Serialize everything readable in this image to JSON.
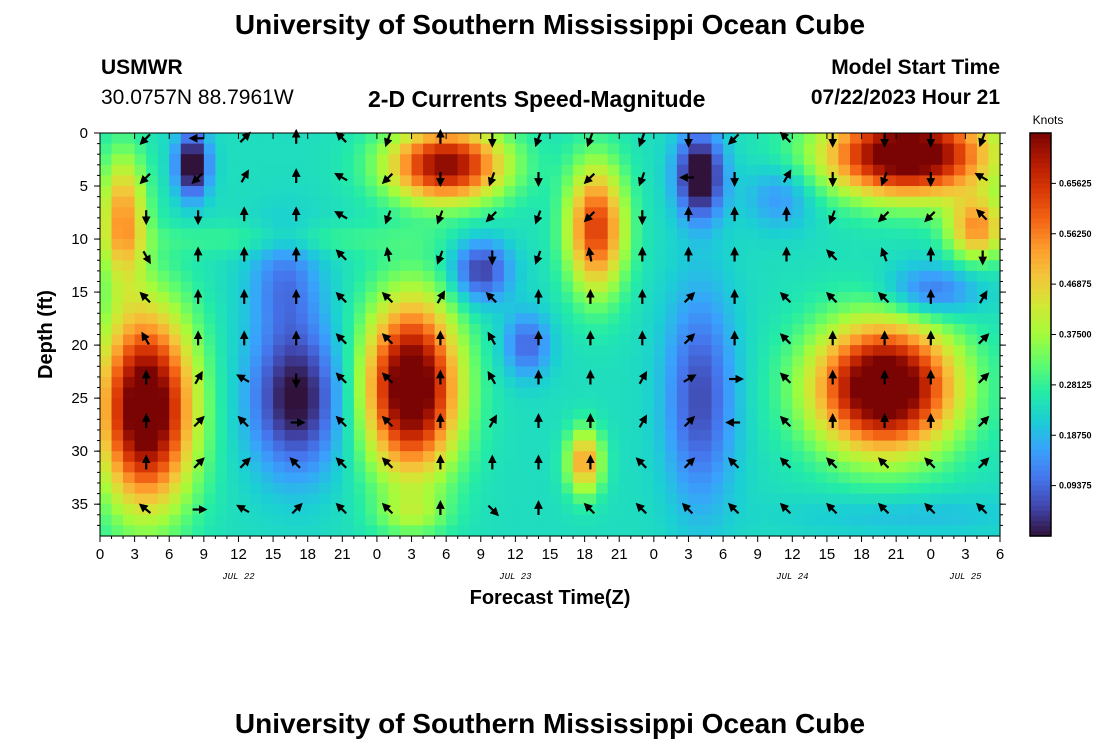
{
  "header": {
    "title": "University of Southern Mississippi Ocean Cube",
    "station": "USMWR",
    "coords": "30.0757N  88.7961W",
    "subtitle": "2-D Currents Speed-Magnitude",
    "model_start_label": "Model Start Time",
    "model_start_value": "07/22/2023 Hour 21"
  },
  "footer": {
    "title": "University of Southern Mississippi Ocean Cube"
  },
  "chart_data": {
    "type": "heatmap",
    "title": "2-D Currents Speed-Magnitude",
    "xlabel": "Forecast Time(Z)",
    "ylabel": "Depth (ft)",
    "x_ticks": [
      "0",
      "3",
      "6",
      "9",
      "12",
      "15",
      "18",
      "21",
      "0",
      "3",
      "6",
      "9",
      "12",
      "15",
      "18",
      "21",
      "0",
      "3",
      "6",
      "9",
      "12",
      "15",
      "18",
      "21",
      "0",
      "3",
      "6"
    ],
    "x_range_hours": [
      0,
      78
    ],
    "day_labels": [
      {
        "label": "JUL 22",
        "hour": 12
      },
      {
        "label": "JUL 23",
        "hour": 36
      },
      {
        "label": "JUL 24",
        "hour": 60
      },
      {
        "label": "JUL 25",
        "hour": 75
      }
    ],
    "y_ticks": [
      "0",
      "5",
      "10",
      "15",
      "20",
      "25",
      "30",
      "35"
    ],
    "ylim": [
      0,
      38
    ],
    "colorbar": {
      "label": "Knots",
      "ticks": [
        "0.65625",
        "0.56250",
        "0.46875",
        "0.37500",
        "0.28125",
        "0.18750",
        "0.09375"
      ],
      "range": [
        0,
        0.75
      ],
      "colors": [
        "#30123b",
        "#4145ab",
        "#4675ed",
        "#39a2fc",
        "#1bcfd4",
        "#24eca6",
        "#61fc6c",
        "#a4fc3b",
        "#d1e834",
        "#f3c63a",
        "#fe9b2d",
        "#f36315",
        "#d93806",
        "#b11901",
        "#7a0403"
      ]
    },
    "speed_blobs": [
      {
        "t": 4,
        "d": 26,
        "st": 4,
        "sd": 9,
        "v": 0.6
      },
      {
        "t": 2,
        "d": 8,
        "st": 2,
        "sd": 6,
        "v": 0.3
      },
      {
        "t": 8,
        "d": 3,
        "st": 1.4,
        "sd": 3,
        "v": -0.3
      },
      {
        "t": 17,
        "d": 25,
        "st": 4,
        "sd": 7,
        "v": -0.25
      },
      {
        "t": 16,
        "d": 14,
        "st": 3,
        "sd": 5,
        "v": -0.12
      },
      {
        "t": 16,
        "d": 10,
        "st": 14,
        "sd": 1.5,
        "v": 0.05
      },
      {
        "t": 27,
        "d": 24,
        "st": 4,
        "sd": 8,
        "v": 0.6
      },
      {
        "t": 27,
        "d": 36,
        "st": 3,
        "sd": 2,
        "v": 0.1
      },
      {
        "t": 30,
        "d": 3,
        "st": 5,
        "sd": 3.5,
        "v": 0.5
      },
      {
        "t": 33,
        "d": 13,
        "st": 2.5,
        "sd": 3,
        "v": -0.2
      },
      {
        "t": 37,
        "d": 20,
        "st": 2,
        "sd": 3,
        "v": -0.15
      },
      {
        "t": 42,
        "d": 31,
        "st": 1.5,
        "sd": 3,
        "v": 0.3
      },
      {
        "t": 43,
        "d": 9,
        "st": 2.5,
        "sd": 6,
        "v": 0.4
      },
      {
        "t": 52,
        "d": 4,
        "st": 2,
        "sd": 4,
        "v": -0.3
      },
      {
        "t": 52,
        "d": 25,
        "st": 3,
        "sd": 10,
        "v": -0.18
      },
      {
        "t": 59,
        "d": 6,
        "st": 3,
        "sd": 3,
        "v": -0.1
      },
      {
        "t": 68,
        "d": 24,
        "st": 6,
        "sd": 6,
        "v": 0.62
      },
      {
        "t": 70,
        "d": 2,
        "st": 7,
        "sd": 4,
        "v": 0.6
      },
      {
        "t": 72,
        "d": 15,
        "st": 4,
        "sd": 2.5,
        "v": -0.15
      },
      {
        "t": 76,
        "d": 9,
        "st": 2.5,
        "sd": 3,
        "v": 0.3
      },
      {
        "t": 70,
        "d": 36,
        "st": 10,
        "sd": 2,
        "v": -0.05
      }
    ],
    "speed_base": 0.24,
    "vector_grid": {
      "columns_hours": [
        4,
        8.5,
        12.5,
        17,
        21,
        25,
        29.5,
        34,
        38,
        42.5,
        47,
        51,
        55,
        59.5,
        63.5,
        68,
        72,
        76.5
      ],
      "rows_depth": [
        0.5,
        4.2,
        7.8,
        11.6,
        15.6,
        19.5,
        23.2,
        27.3,
        31.2,
        35.5
      ]
    },
    "vector_directions_deg": [
      [
        225,
        270,
        45,
        0,
        315,
        200,
        0,
        180,
        200,
        200,
        200,
        180,
        225,
        315,
        180,
        180,
        180,
        200
      ],
      [
        225,
        225,
        30,
        0,
        300,
        225,
        180,
        200,
        180,
        225,
        200,
        270,
        180,
        30,
        180,
        200,
        180,
        300
      ],
      [
        180,
        180,
        0,
        0,
        300,
        200,
        200,
        225,
        200,
        225,
        180,
        0,
        0,
        0,
        200,
        225,
        225,
        315
      ],
      [
        150,
        0,
        0,
        0,
        315,
        350,
        200,
        180,
        200,
        350,
        0,
        0,
        0,
        0,
        315,
        340,
        0,
        180
      ],
      [
        315,
        0,
        0,
        0,
        315,
        315,
        30,
        315,
        0,
        0,
        0,
        45,
        0,
        315,
        315,
        315,
        0,
        30
      ],
      [
        330,
        0,
        0,
        0,
        315,
        315,
        0,
        330,
        0,
        0,
        0,
        45,
        0,
        315,
        0,
        0,
        0,
        45
      ],
      [
        0,
        30,
        300,
        180,
        315,
        315,
        0,
        330,
        0,
        0,
        30,
        60,
        90,
        315,
        0,
        0,
        0,
        45
      ],
      [
        0,
        45,
        315,
        90,
        315,
        315,
        0,
        30,
        0,
        0,
        30,
        45,
        270,
        315,
        0,
        0,
        0,
        45
      ],
      [
        0,
        45,
        45,
        315,
        315,
        315,
        0,
        0,
        0,
        0,
        315,
        45,
        315,
        315,
        315,
        315,
        315,
        45
      ],
      [
        310,
        90,
        300,
        45,
        315,
        315,
        0,
        135,
        0,
        315,
        315,
        315,
        315,
        315,
        315,
        315,
        315,
        315
      ]
    ]
  }
}
